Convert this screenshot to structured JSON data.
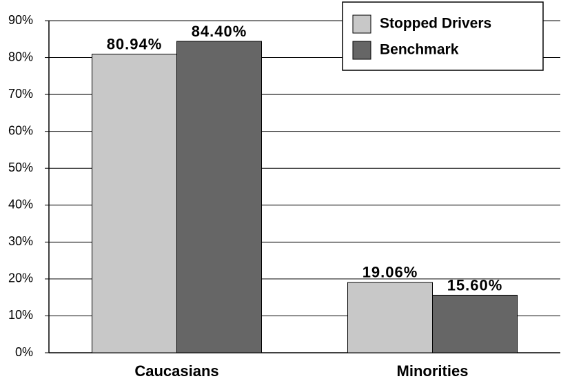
{
  "chart_data": {
    "type": "bar",
    "categories": [
      "Caucasians",
      "Minorities"
    ],
    "series": [
      {
        "name": "Stopped Drivers",
        "color": "#c8c8c8",
        "values": [
          80.94,
          19.06
        ],
        "value_labels": [
          "80.94%",
          "19.06%"
        ]
      },
      {
        "name": "Benchmark",
        "color": "#666666",
        "values": [
          84.4,
          15.6
        ],
        "value_labels": [
          "84.40%",
          "15.60%"
        ]
      }
    ],
    "ylim": [
      0,
      90
    ],
    "yticks": [
      {
        "value": 0,
        "label": "0%"
      },
      {
        "value": 10,
        "label": "10%"
      },
      {
        "value": 20,
        "label": "20%"
      },
      {
        "value": 30,
        "label": "30%"
      },
      {
        "value": 40,
        "label": "40%"
      },
      {
        "value": 50,
        "label": "50%"
      },
      {
        "value": 60,
        "label": "60%"
      },
      {
        "value": 70,
        "label": "70%"
      },
      {
        "value": 80,
        "label": "80%"
      },
      {
        "value": 90,
        "label": "90%"
      }
    ],
    "grid": true,
    "legend": "upper right"
  }
}
